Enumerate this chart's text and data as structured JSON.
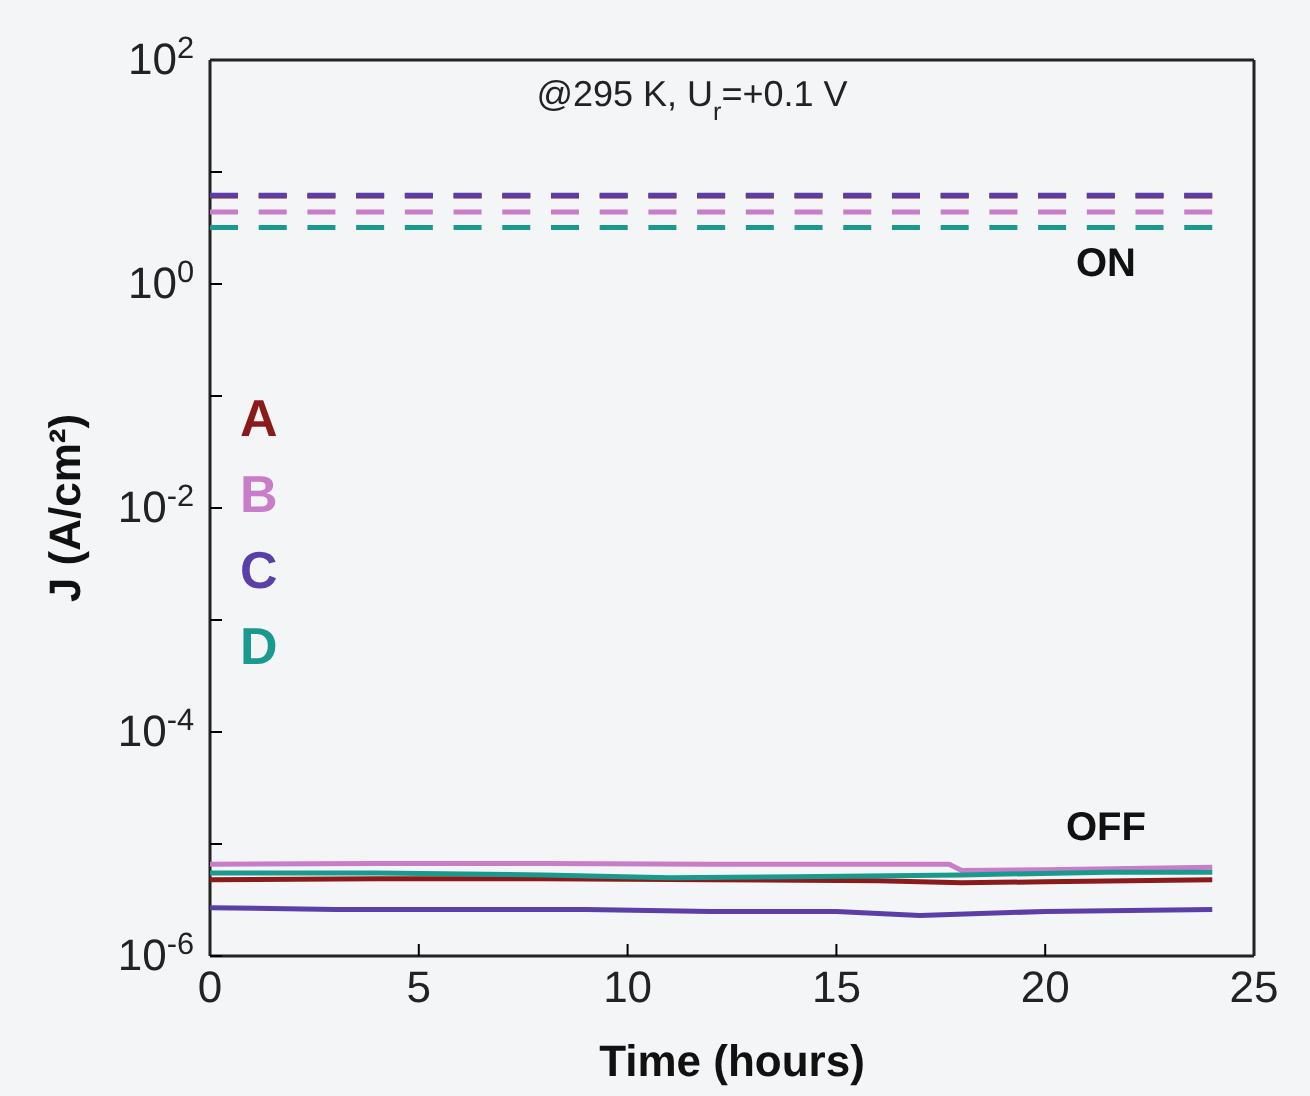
{
  "chart_data": {
    "type": "line",
    "xlabel": "Time (hours)",
    "ylabel": "J (A/cm²)",
    "log": "y",
    "xlim": [
      0,
      25
    ],
    "xticks": [
      0,
      5,
      10,
      15,
      20,
      25
    ],
    "ylim": [
      1e-06,
      100
    ],
    "yticks": [
      {
        "value": 1e-06,
        "label": "10$^{-6}$"
      },
      {
        "value": 1e-05,
        "label": null
      },
      {
        "value": 0.0001,
        "label": "10$^{-4}$"
      },
      {
        "value": 0.001,
        "label": null
      },
      {
        "value": 0.01,
        "label": "10$^{-2}$"
      },
      {
        "value": 0.1,
        "label": null
      },
      {
        "value": 1,
        "label": "10$^{0}$"
      },
      {
        "value": 10,
        "label": null
      },
      {
        "value": 100,
        "label": "10$^{2}$"
      }
    ],
    "legend": "left",
    "grid": false,
    "marker": "none",
    "series": [
      {
        "name": "A",
        "color": "#8b1a1a",
        "line_style": "solid",
        "x": [
          0,
          4,
          8,
          12,
          16,
          18,
          20,
          24
        ],
        "values": [
          4.8e-06,
          4.9e-06,
          4.9e-06,
          4.8e-06,
          4.7e-06,
          4.5e-06,
          4.6e-06,
          4.8e-06
        ]
      },
      {
        "name": "B",
        "color": "#c77dc7",
        "line_style": "solid",
        "x": [
          0,
          4,
          8,
          12,
          16,
          17.7,
          18,
          20,
          24
        ],
        "values": [
          6.6e-06,
          6.7e-06,
          6.7e-06,
          6.6e-06,
          6.6e-06,
          6.6e-06,
          5.8e-06,
          5.9e-06,
          6.2e-06
        ]
      },
      {
        "name": "C",
        "color": "#5b3fa8",
        "line_style": "solid",
        "x": [
          0,
          3,
          6,
          9,
          12,
          15,
          17,
          20,
          24
        ],
        "values": [
          2.7e-06,
          2.6e-06,
          2.6e-06,
          2.6e-06,
          2.5e-06,
          2.5e-06,
          2.3e-06,
          2.5e-06,
          2.6e-06
        ]
      },
      {
        "name": "D",
        "color": "#1a9a8f",
        "line_style": "solid",
        "x": [
          0,
          4,
          8,
          11,
          14,
          18,
          21.5,
          24
        ],
        "values": [
          5.5e-06,
          5.5e-06,
          5.3e-06,
          5e-06,
          5.1e-06,
          5.3e-06,
          5.6e-06,
          5.6e-06
        ]
      },
      {
        "color": "#8b1a1a",
        "line_style": "dashed",
        "x": [
          0,
          24
        ],
        "values": [
          6.1,
          6.1
        ]
      },
      {
        "color": "#5b3fa8",
        "line_style": "dashed",
        "x": [
          0,
          24
        ],
        "values": [
          6.2,
          6.2
        ]
      },
      {
        "color": "#c77dc7",
        "line_style": "dashed",
        "x": [
          0,
          24
        ],
        "values": [
          4.4,
          4.4
        ]
      },
      {
        "color": "#1a9a8f",
        "line_style": "dashed",
        "x": [
          0,
          24
        ],
        "values": [
          3.2,
          3.2
        ]
      }
    ],
    "annotations": [
      "@295 K, U$_{r}$=+0.1 V",
      "ON",
      "OFF"
    ]
  }
}
